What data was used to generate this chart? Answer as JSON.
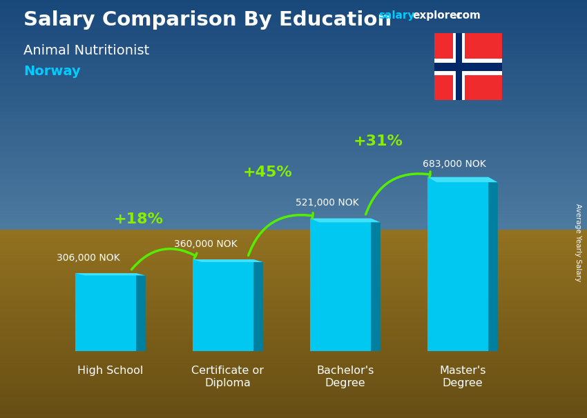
{
  "title": "Salary Comparison By Education",
  "subtitle": "Animal Nutritionist",
  "country": "Norway",
  "categories": [
    "High School",
    "Certificate or\nDiploma",
    "Bachelor's\nDegree",
    "Master's\nDegree"
  ],
  "values": [
    306000,
    360000,
    521000,
    683000
  ],
  "value_labels": [
    "306,000 NOK",
    "360,000 NOK",
    "521,000 NOK",
    "683,000 NOK"
  ],
  "pct_labels": [
    "+18%",
    "+45%",
    "+31%"
  ],
  "bar_color_face": "#00c8f0",
  "bar_color_side": "#0080a0",
  "bar_color_top": "#40e0f8",
  "arrow_color": "#55ee00",
  "title_color": "#ffffff",
  "subtitle_color": "#ffffff",
  "country_color": "#00ccff",
  "value_color": "#ffffff",
  "pct_color": "#88ee00",
  "ylabel": "Average Yearly Salary",
  "sky_color_top": "#1a5a9a",
  "sky_color_bottom": "#5090c0",
  "field_color_top": "#b8902a",
  "field_color_bottom": "#8a6820",
  "ylim": [
    0,
    820000
  ],
  "figsize": [
    8.5,
    6.06
  ],
  "dpi": 100
}
